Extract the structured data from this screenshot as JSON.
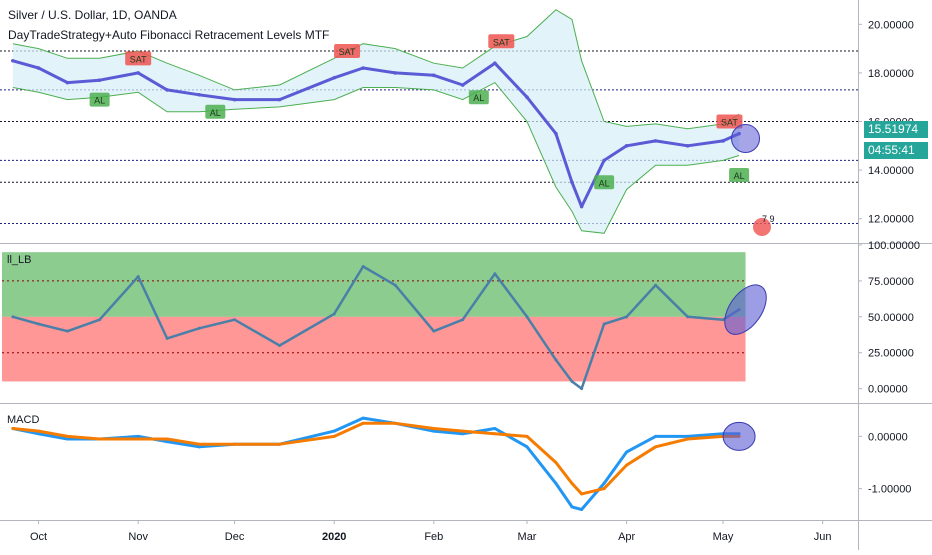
{
  "header": {
    "symbol_line": "Silver / U.S. Dollar, 1D, OANDA",
    "indicator_line": "DayTradeStrategy+Auto Fibonacci Retracement Levels MTF"
  },
  "colors": {
    "price_line": "#5b5bd6",
    "rsi_line": "#4a7fa8",
    "macd_line": "#2196f3",
    "signal_line": "#f57c00",
    "bb_band": "#4caf50",
    "bb_fill": "#d6eef8",
    "buy_label": "#4caf50",
    "sell_label": "#ef5350",
    "green_zone": "#66bb6a",
    "red_zone": "#ff6b6b",
    "accent_tag": "#26a69a"
  },
  "icons": [
    "buy-signal-icon",
    "sell-signal-icon",
    "tradingview-logo-icon"
  ],
  "price_tags": {
    "last_price": "15.51974",
    "countdown": "04:55:41"
  },
  "signal_labels": {
    "buy": "AL",
    "sell": "SAT"
  },
  "watermark_text": "7 9",
  "chart_data": [
    {
      "type": "line",
      "pane": "price",
      "title": "Silver / U.S. Dollar, 1D, OANDA",
      "ylim": [
        11.0,
        21.0
      ],
      "y_ticks": [
        "20.00000",
        "18.00000",
        "16.00000",
        "14.00000",
        "12.00000"
      ],
      "x_ticks": [
        "Oct",
        "Nov",
        "Dec",
        "2020",
        "Feb",
        "Mar",
        "Apr",
        "May",
        "Jun"
      ],
      "x": [
        "2019-09-23",
        "2019-10-01",
        "2019-10-10",
        "2019-10-20",
        "2019-11-01",
        "2019-11-10",
        "2019-11-20",
        "2019-12-01",
        "2019-12-15",
        "2020-01-01",
        "2020-01-10",
        "2020-01-20",
        "2020-02-01",
        "2020-02-10",
        "2020-02-20",
        "2020-03-01",
        "2020-03-10",
        "2020-03-15",
        "2020-03-18",
        "2020-03-25",
        "2020-04-01",
        "2020-04-10",
        "2020-04-20",
        "2020-05-01",
        "2020-05-06"
      ],
      "series": [
        {
          "name": "",
          "values": [
            18.5,
            18.2,
            17.6,
            17.7,
            18.0,
            17.3,
            17.1,
            16.9,
            16.9,
            17.8,
            18.2,
            18.0,
            17.9,
            17.5,
            18.4,
            17.0,
            15.5,
            13.5,
            12.5,
            14.4,
            15.0,
            15.2,
            15.0,
            15.2,
            15.5
          ]
        }
      ],
      "bands": {
        "upper": [
          19.2,
          19.0,
          18.6,
          18.6,
          18.9,
          18.4,
          17.9,
          17.3,
          17.5,
          18.6,
          19.2,
          19.0,
          18.4,
          18.2,
          19.1,
          19.5,
          20.6,
          20.2,
          18.5,
          16.0,
          15.8,
          15.9,
          15.7,
          15.9,
          16.3
        ],
        "lower": [
          17.4,
          17.2,
          16.9,
          17.0,
          17.2,
          16.4,
          16.4,
          16.5,
          16.6,
          16.9,
          17.4,
          17.4,
          17.3,
          16.9,
          17.6,
          16.0,
          13.3,
          12.3,
          11.5,
          11.4,
          13.2,
          14.2,
          14.2,
          14.4,
          14.6
        ]
      },
      "hlines": [
        18.9,
        17.3,
        16.0,
        14.4,
        13.5,
        11.8
      ],
      "hline_labels": [],
      "signals": [
        {
          "type": "sell",
          "x": "2019-11-01",
          "y": 18.6
        },
        {
          "type": "buy",
          "x": "2019-10-20",
          "y": 16.9
        },
        {
          "type": "buy",
          "x": "2019-11-25",
          "y": 16.4
        },
        {
          "type": "sell",
          "x": "2020-01-05",
          "y": 18.9
        },
        {
          "type": "buy",
          "x": "2020-02-15",
          "y": 17.0
        },
        {
          "type": "sell",
          "x": "2020-02-22",
          "y": 19.3
        },
        {
          "type": "buy",
          "x": "2020-03-25",
          "y": 13.5
        },
        {
          "type": "sell",
          "x": "2020-05-03",
          "y": 16.0
        },
        {
          "type": "buy",
          "x": "2020-05-06",
          "y": 13.8
        }
      ]
    },
    {
      "type": "line",
      "pane": "ll_lb",
      "title": "ll_LB",
      "ylim": [
        -10,
        100
      ],
      "y_ticks": [
        "100.00000",
        "75.00000",
        "50.00000",
        "25.00000",
        "0.00000"
      ],
      "x": [
        "2019-09-23",
        "2019-10-01",
        "2019-10-10",
        "2019-10-20",
        "2019-11-01",
        "2019-11-10",
        "2019-11-20",
        "2019-12-01",
        "2019-12-15",
        "2020-01-01",
        "2020-01-10",
        "2020-01-20",
        "2020-02-01",
        "2020-02-10",
        "2020-02-20",
        "2020-03-01",
        "2020-03-10",
        "2020-03-15",
        "2020-03-18",
        "2020-03-25",
        "2020-04-01",
        "2020-04-10",
        "2020-04-20",
        "2020-05-01",
        "2020-05-06"
      ],
      "series": [
        {
          "name": "",
          "values": [
            50,
            45,
            40,
            48,
            78,
            35,
            42,
            48,
            30,
            52,
            85,
            72,
            40,
            48,
            80,
            50,
            20,
            5,
            0,
            45,
            50,
            72,
            50,
            48,
            55
          ]
        }
      ],
      "zones": {
        "green": [
          50,
          95
        ],
        "red": [
          5,
          50
        ]
      },
      "dotted_levels": [
        75,
        25
      ]
    },
    {
      "type": "line",
      "pane": "macd",
      "title": "MACD",
      "ylim": [
        -1.6,
        0.6
      ],
      "y_ticks": [
        "0.00000",
        "-1.00000"
      ],
      "x": [
        "2019-09-23",
        "2019-10-01",
        "2019-10-10",
        "2019-10-20",
        "2019-11-01",
        "2019-11-10",
        "2019-11-20",
        "2019-12-01",
        "2019-12-15",
        "2020-01-01",
        "2020-01-10",
        "2020-01-20",
        "2020-02-01",
        "2020-02-10",
        "2020-02-20",
        "2020-03-01",
        "2020-03-10",
        "2020-03-15",
        "2020-03-18",
        "2020-03-25",
        "2020-04-01",
        "2020-04-10",
        "2020-04-20",
        "2020-05-01",
        "2020-05-06"
      ],
      "series": [
        {
          "name": "",
          "values": [
            0.15,
            0.05,
            -0.05,
            -0.05,
            0.0,
            -0.1,
            -0.2,
            -0.15,
            -0.15,
            0.1,
            0.35,
            0.25,
            0.1,
            0.05,
            0.15,
            -0.2,
            -0.9,
            -1.35,
            -1.4,
            -0.9,
            -0.3,
            0.0,
            0.0,
            0.05,
            0.05
          ]
        },
        {
          "name": "",
          "values": [
            0.15,
            0.1,
            0.0,
            -0.05,
            -0.05,
            -0.05,
            -0.15,
            -0.15,
            -0.15,
            0.0,
            0.25,
            0.25,
            0.15,
            0.1,
            0.05,
            0.0,
            -0.5,
            -0.9,
            -1.1,
            -1.0,
            -0.55,
            -0.2,
            -0.05,
            0.0,
            0.0
          ]
        }
      ]
    }
  ]
}
